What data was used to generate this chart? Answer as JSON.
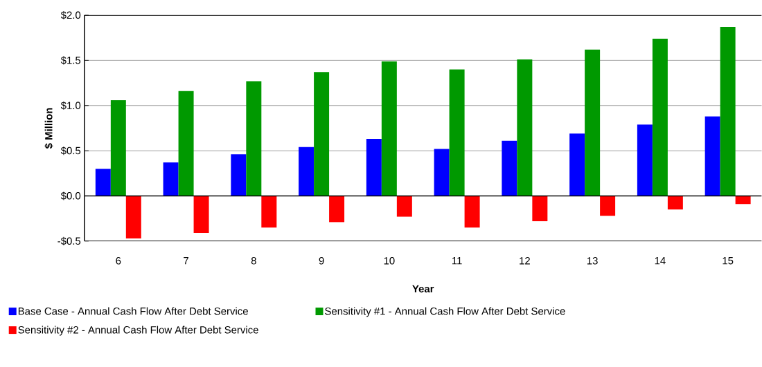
{
  "chart_data": {
    "type": "bar",
    "xlabel": "Year",
    "ylabel": "$ Million",
    "categories": [
      "6",
      "7",
      "8",
      "9",
      "10",
      "11",
      "12",
      "13",
      "14",
      "15"
    ],
    "series": [
      {
        "name": "Base Case - Annual Cash Flow After Debt Service",
        "color": "#0000ff",
        "values": [
          0.3,
          0.37,
          0.46,
          0.54,
          0.63,
          0.52,
          0.61,
          0.69,
          0.79,
          0.88
        ]
      },
      {
        "name": "Sensitivity #1 - Annual Cash Flow After Debt Service",
        "color": "#009900",
        "values": [
          1.06,
          1.16,
          1.27,
          1.37,
          1.49,
          1.4,
          1.51,
          1.62,
          1.74,
          1.87
        ]
      },
      {
        "name": "Sensitivity #2 - Annual Cash Flow After Debt Service",
        "color": "#ff0000",
        "values": [
          -0.47,
          -0.41,
          -0.35,
          -0.29,
          -0.23,
          -0.35,
          -0.28,
          -0.22,
          -0.15,
          -0.09
        ]
      }
    ],
    "ylim": [
      -0.5,
      2.0
    ],
    "yticks": [
      {
        "value": -0.5,
        "label": "-$0.5"
      },
      {
        "value": 0.0,
        "label": "$0.0"
      },
      {
        "value": 0.5,
        "label": "$0.5"
      },
      {
        "value": 1.0,
        "label": "$1.0"
      },
      {
        "value": 1.5,
        "label": "$1.5"
      },
      {
        "value": 2.0,
        "label": "$2.0"
      }
    ],
    "grid": "y",
    "legend": "bottom"
  }
}
